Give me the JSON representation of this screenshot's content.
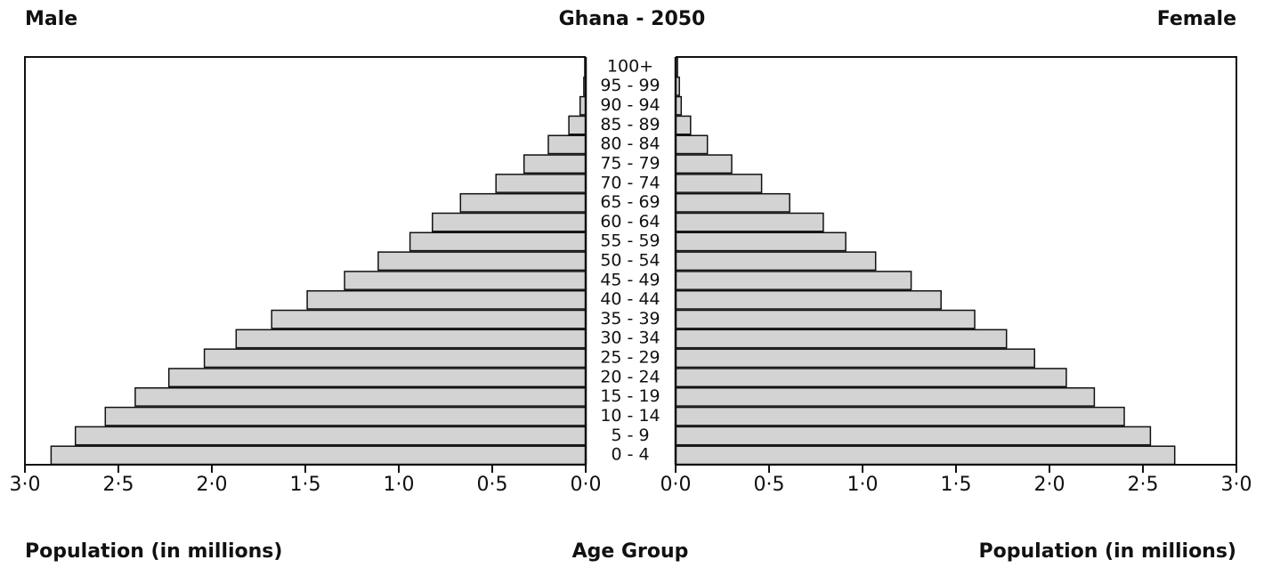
{
  "chart_data": {
    "type": "pyramid",
    "title": "Ghana - 2050",
    "xlabel": "Population (in millions)",
    "ylabel": "Age Group",
    "categories": [
      "0 - 4",
      "5 - 9",
      "10 - 14",
      "15 - 19",
      "20 - 24",
      "25 - 29",
      "30 - 34",
      "35 - 39",
      "40 - 44",
      "45 - 49",
      "50 - 54",
      "55 - 59",
      "60 - 64",
      "65 - 69",
      "70 - 74",
      "75 - 79",
      "80 - 84",
      "85 - 89",
      "90 - 94",
      "95 - 99",
      "100+"
    ],
    "series": [
      {
        "name": "Male",
        "color": "#d3d3d3",
        "values": [
          2.86,
          2.73,
          2.57,
          2.41,
          2.23,
          2.04,
          1.87,
          1.68,
          1.49,
          1.29,
          1.11,
          0.94,
          0.82,
          0.67,
          0.48,
          0.33,
          0.2,
          0.09,
          0.03,
          0.01,
          0.005
        ]
      },
      {
        "name": "Female",
        "color": "#d3d3d3",
        "values": [
          2.67,
          2.54,
          2.4,
          2.24,
          2.09,
          1.92,
          1.77,
          1.6,
          1.42,
          1.26,
          1.07,
          0.91,
          0.79,
          0.61,
          0.46,
          0.3,
          0.17,
          0.08,
          0.03,
          0.02,
          0.01
        ]
      }
    ],
    "xlim": [
      0,
      3
    ],
    "xticks": [
      {
        "value": 0,
        "label": "0·0"
      },
      {
        "value": 0.5,
        "label": "0·5"
      },
      {
        "value": 1,
        "label": "1·0"
      },
      {
        "value": 1.5,
        "label": "1·5"
      },
      {
        "value": 2,
        "label": "2·0"
      },
      {
        "value": 2.5,
        "label": "2·5"
      },
      {
        "value": 3,
        "label": "3·0"
      }
    ]
  }
}
